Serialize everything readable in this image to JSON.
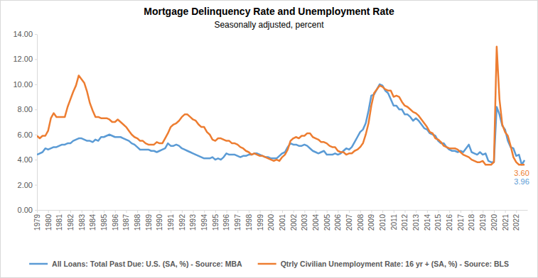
{
  "chart_data": {
    "type": "line",
    "title": "Mortgage Delinquency Rate and Unemployment Rate",
    "subtitle": "Seasonally adjusted, percent",
    "x": [
      1979,
      1979.25,
      1979.5,
      1979.75,
      1980,
      1980.25,
      1980.5,
      1980.75,
      1981,
      1981.25,
      1981.5,
      1981.75,
      1982,
      1982.25,
      1982.5,
      1982.75,
      1983,
      1983.25,
      1983.5,
      1983.75,
      1984,
      1984.25,
      1984.5,
      1984.75,
      1985,
      1985.25,
      1985.5,
      1985.75,
      1986,
      1986.25,
      1986.5,
      1986.75,
      1987,
      1987.25,
      1987.5,
      1987.75,
      1988,
      1988.25,
      1988.5,
      1988.75,
      1989,
      1989.25,
      1989.5,
      1989.75,
      1990,
      1990.25,
      1990.5,
      1990.75,
      1991,
      1991.25,
      1991.5,
      1991.75,
      1992,
      1992.25,
      1992.5,
      1992.75,
      1993,
      1993.25,
      1993.5,
      1993.75,
      1994,
      1994.25,
      1994.5,
      1994.75,
      1995,
      1995.25,
      1995.5,
      1995.75,
      1996,
      1996.25,
      1996.5,
      1996.75,
      1997,
      1997.25,
      1997.5,
      1997.75,
      1998,
      1998.25,
      1998.5,
      1998.75,
      1999,
      1999.25,
      1999.5,
      1999.75,
      2000,
      2000.25,
      2000.5,
      2000.75,
      2001,
      2001.25,
      2001.5,
      2001.75,
      2002,
      2002.25,
      2002.5,
      2002.75,
      2003,
      2003.25,
      2003.5,
      2003.75,
      2004,
      2004.25,
      2004.5,
      2004.75,
      2005,
      2005.25,
      2005.5,
      2005.75,
      2006,
      2006.25,
      2006.5,
      2006.75,
      2007,
      2007.25,
      2007.5,
      2007.75,
      2008,
      2008.25,
      2008.5,
      2008.75,
      2009,
      2009.25,
      2009.5,
      2009.75,
      2010,
      2010.25,
      2010.5,
      2010.75,
      2011,
      2011.25,
      2011.5,
      2011.75,
      2012,
      2012.25,
      2012.5,
      2012.75,
      2013,
      2013.25,
      2013.5,
      2013.75,
      2014,
      2014.25,
      2014.5,
      2014.75,
      2015,
      2015.25,
      2015.5,
      2015.75,
      2016,
      2016.25,
      2016.5,
      2016.75,
      2017,
      2017.25,
      2017.5,
      2017.75,
      2018,
      2018.25,
      2018.5,
      2018.75,
      2019,
      2019.25,
      2019.5,
      2019.75,
      2020,
      2020.25,
      2020.5,
      2020.75,
      2021,
      2021.25,
      2021.5,
      2021.75,
      2022,
      2022.25,
      2022.5,
      2022.75
    ],
    "series": [
      {
        "name": "All Loans: Total Past Due: U.S. (SA, %) - Source: MBA",
        "color": "#5b9bd5",
        "end_label": "3.96",
        "values": [
          4.4,
          4.5,
          4.6,
          4.9,
          4.8,
          4.9,
          5.0,
          5.0,
          5.1,
          5.2,
          5.2,
          5.3,
          5.3,
          5.5,
          5.6,
          5.7,
          5.7,
          5.6,
          5.5,
          5.5,
          5.4,
          5.6,
          5.5,
          5.8,
          5.8,
          5.9,
          6.0,
          5.9,
          5.8,
          5.8,
          5.8,
          5.7,
          5.6,
          5.5,
          5.3,
          5.2,
          5.0,
          4.8,
          4.8,
          4.8,
          4.8,
          4.7,
          4.7,
          4.6,
          4.7,
          4.8,
          4.9,
          5.3,
          5.1,
          5.1,
          5.2,
          5.1,
          4.9,
          4.8,
          4.7,
          4.6,
          4.5,
          4.4,
          4.3,
          4.2,
          4.1,
          4.1,
          4.1,
          4.2,
          4.0,
          4.1,
          4.0,
          4.2,
          4.5,
          4.4,
          4.4,
          4.4,
          4.3,
          4.2,
          4.3,
          4.3,
          4.4,
          4.4,
          4.5,
          4.5,
          4.4,
          4.3,
          4.2,
          4.2,
          4.1,
          4.1,
          4.1,
          4.3,
          4.5,
          4.6,
          5.0,
          5.3,
          5.2,
          5.2,
          5.1,
          5.1,
          5.2,
          5.1,
          4.9,
          4.7,
          4.6,
          4.5,
          4.6,
          4.7,
          4.4,
          4.4,
          4.4,
          4.5,
          4.4,
          4.5,
          4.7,
          4.9,
          4.8,
          5.0,
          5.4,
          5.8,
          6.2,
          6.4,
          6.9,
          7.9,
          9.1,
          9.2,
          9.6,
          10.0,
          9.9,
          9.5,
          9.3,
          8.8,
          8.3,
          8.3,
          8.0,
          8.0,
          7.6,
          7.6,
          7.4,
          7.1,
          7.3,
          7.1,
          6.8,
          6.5,
          6.4,
          6.1,
          6.0,
          5.9,
          5.5,
          5.3,
          5.3,
          5.0,
          4.8,
          4.7,
          4.7,
          4.6,
          4.7,
          4.6,
          4.9,
          5.2,
          4.6,
          4.5,
          4.4,
          4.6,
          4.4,
          4.5,
          3.9,
          3.8,
          3.8,
          8.2,
          7.6,
          6.7,
          6.4,
          5.5,
          5.0,
          4.9,
          4.3,
          4.4,
          3.6,
          3.96
        ]
      },
      {
        "name": "Qtrly Civilian Unemployment Rate: 16 yr + (SA, %) - Source: BLS",
        "color": "#ed7d31",
        "end_label": "3.60",
        "values": [
          5.9,
          5.7,
          5.9,
          5.9,
          6.3,
          7.3,
          7.7,
          7.4,
          7.4,
          7.4,
          7.4,
          8.2,
          8.8,
          9.4,
          9.9,
          10.7,
          10.4,
          10.1,
          9.4,
          8.5,
          7.9,
          7.4,
          7.4,
          7.3,
          7.3,
          7.3,
          7.2,
          7.0,
          7.0,
          7.2,
          7.0,
          6.8,
          6.6,
          6.3,
          6.0,
          5.8,
          5.7,
          5.5,
          5.5,
          5.3,
          5.2,
          5.2,
          5.2,
          5.4,
          5.3,
          5.3,
          5.7,
          6.1,
          6.6,
          6.8,
          6.9,
          7.1,
          7.4,
          7.6,
          7.6,
          7.4,
          7.2,
          7.1,
          6.8,
          6.6,
          6.6,
          6.2,
          6.0,
          5.6,
          5.5,
          5.7,
          5.7,
          5.6,
          5.5,
          5.5,
          5.3,
          5.3,
          5.2,
          5.0,
          4.9,
          4.7,
          4.6,
          4.4,
          4.5,
          4.4,
          4.3,
          4.3,
          4.2,
          4.1,
          4.0,
          3.9,
          4.0,
          3.9,
          4.2,
          4.4,
          4.8,
          5.5,
          5.7,
          5.8,
          5.7,
          5.9,
          5.9,
          6.1,
          6.1,
          5.8,
          5.7,
          5.6,
          5.4,
          5.4,
          5.3,
          5.1,
          5.0,
          5.0,
          4.7,
          4.6,
          4.6,
          4.4,
          4.5,
          4.5,
          4.7,
          4.8,
          5.0,
          5.3,
          6.0,
          6.9,
          8.3,
          9.3,
          9.6,
          9.9,
          9.8,
          9.6,
          9.5,
          9.5,
          9.0,
          9.1,
          9.0,
          8.6,
          8.3,
          8.2,
          8.0,
          7.8,
          7.7,
          7.5,
          7.2,
          6.9,
          6.6,
          6.2,
          6.1,
          5.7,
          5.6,
          5.4,
          5.1,
          5.0,
          4.9,
          4.9,
          4.9,
          4.8,
          4.6,
          4.4,
          4.3,
          4.2,
          4.0,
          3.9,
          3.8,
          3.8,
          3.9,
          3.6,
          3.6,
          3.6,
          3.8,
          13.0,
          8.8,
          6.8,
          6.2,
          5.9,
          5.1,
          4.2,
          3.8,
          3.6,
          3.6,
          3.6
        ]
      }
    ],
    "xlim": [
      1979,
      2023
    ],
    "xticks": [
      1979,
      1980,
      1981,
      1982,
      1983,
      1984,
      1985,
      1986,
      1987,
      1988,
      1989,
      1990,
      1991,
      1992,
      1993,
      1994,
      1995,
      1996,
      1997,
      1998,
      1999,
      2000,
      2001,
      2002,
      2003,
      2004,
      2005,
      2006,
      2007,
      2008,
      2009,
      2010,
      2011,
      2012,
      2013,
      2014,
      2015,
      2016,
      2017,
      2018,
      2019,
      2020,
      2021,
      2022
    ],
    "ylim": [
      0,
      14
    ],
    "yticks": [
      {
        "value": 0,
        "label": "0.00"
      },
      {
        "value": 2,
        "label": "2.00"
      },
      {
        "value": 4,
        "label": "4.00"
      },
      {
        "value": 6,
        "label": "6.00"
      },
      {
        "value": 8,
        "label": "8.00"
      },
      {
        "value": 10,
        "label": "10.00"
      },
      {
        "value": 12,
        "label": "12.00"
      },
      {
        "value": 14,
        "label": "14.00"
      }
    ],
    "grid": false,
    "legend": "bottom"
  }
}
